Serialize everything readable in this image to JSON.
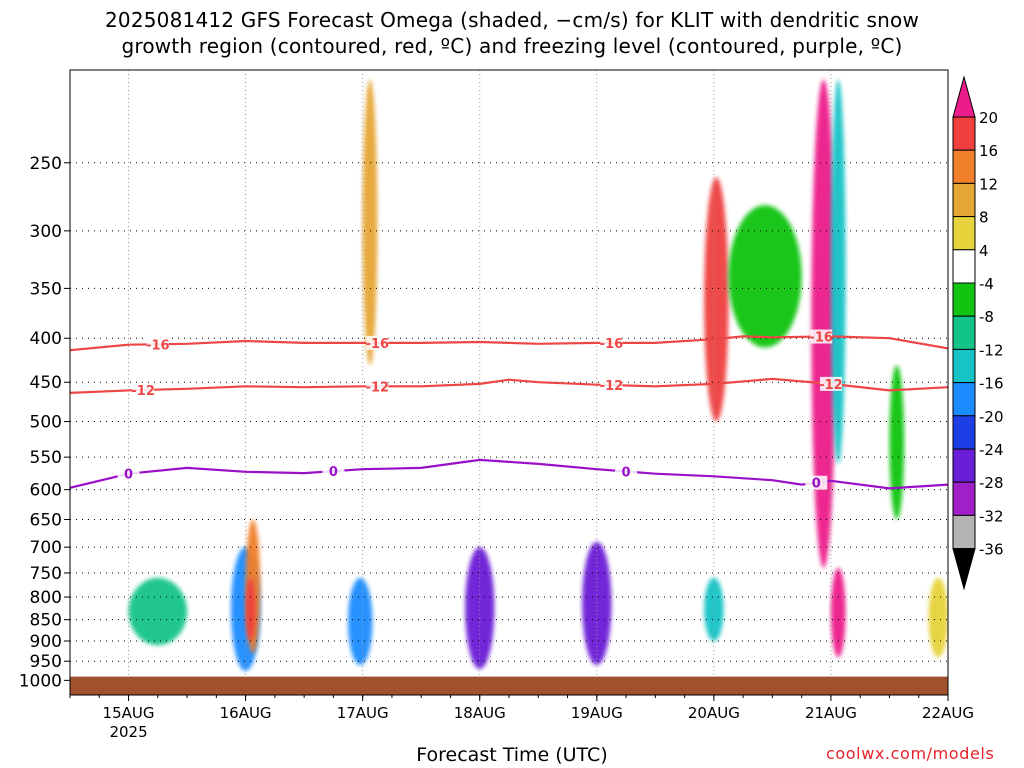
{
  "title_line1": "2025081412 GFS Forecast Omega (shaded, −cm/s) for KLIT with dendritic snow",
  "title_line2": "growth region (contoured, red, ºC) and freezing level (contoured, purple, ºC)",
  "xlabel": "Forecast Time (UTC)",
  "credit": "coolwx.com/models",
  "chart_data": {
    "type": "heatmap",
    "title": "2025081412 GFS Forecast Omega (shaded, −cm/s) for KLIT with dendritic snow growth region (contoured, red, ºC) and freezing level (contoured, purple, ºC)",
    "xlabel": "Forecast Time (UTC)",
    "ylabel": "",
    "x_range": [
      "2025-08-14 12:00",
      "2025-08-22 00:00"
    ],
    "x_ticks": [
      {
        "date": "2025-08-15",
        "label": "15AUG",
        "sublabel": "2025"
      },
      {
        "date": "2025-08-16",
        "label": "16AUG"
      },
      {
        "date": "2025-08-17",
        "label": "17AUG"
      },
      {
        "date": "2025-08-18",
        "label": "18AUG"
      },
      {
        "date": "2025-08-19",
        "label": "19AUG"
      },
      {
        "date": "2025-08-20",
        "label": "20AUG"
      },
      {
        "date": "2025-08-21",
        "label": "21AUG"
      },
      {
        "date": "2025-08-22",
        "label": "22AUG"
      }
    ],
    "y_scale": "log",
    "y_inverted": true,
    "y_range": [
      1040,
      195
    ],
    "y_ticks": [
      250,
      300,
      350,
      400,
      450,
      500,
      550,
      600,
      650,
      700,
      750,
      800,
      850,
      900,
      950,
      1000
    ],
    "grid": "dotted",
    "ground_band": {
      "from": 990,
      "to": 1040,
      "color": "#a0522d"
    },
    "colorbar": {
      "levels": [
        20,
        16,
        12,
        8,
        4,
        -4,
        -8,
        -12,
        -16,
        -20,
        -24,
        -28,
        -32,
        -36
      ],
      "bands": [
        {
          "from": 20,
          "to": null,
          "color": "#ec1d8a"
        },
        {
          "from": 16,
          "to": 20,
          "color": "#ef3f3f"
        },
        {
          "from": 12,
          "to": 16,
          "color": "#f07f2a"
        },
        {
          "from": 8,
          "to": 12,
          "color": "#e5a635"
        },
        {
          "from": 4,
          "to": 8,
          "color": "#e6d23a"
        },
        {
          "from": -4,
          "to": 4,
          "color": "#ffffff"
        },
        {
          "from": -8,
          "to": -4,
          "color": "#11c411"
        },
        {
          "from": -12,
          "to": -8,
          "color": "#13c48a"
        },
        {
          "from": -16,
          "to": -12,
          "color": "#16c3c6"
        },
        {
          "from": -20,
          "to": -16,
          "color": "#1a8cff"
        },
        {
          "from": -24,
          "to": -20,
          "color": "#1f3fe6"
        },
        {
          "from": -28,
          "to": -24,
          "color": "#6a1fd6"
        },
        {
          "from": -32,
          "to": -28,
          "color": "#a11fc8"
        },
        {
          "from": -36,
          "to": -32,
          "color": "#b4b4b4"
        },
        {
          "from": null,
          "to": -36,
          "color": "#000000"
        }
      ]
    },
    "contours": [
      {
        "label": "-16",
        "color": "#ee4646",
        "points": [
          [
            "08-14 12",
            413
          ],
          [
            "08-15 00",
            407
          ],
          [
            "08-15 12",
            406
          ],
          [
            "08-16 00",
            403
          ],
          [
            "08-16 12",
            405
          ],
          [
            "08-17 00",
            405
          ],
          [
            "08-17 12",
            405
          ],
          [
            "08-18 00",
            404
          ],
          [
            "08-18 12",
            406
          ],
          [
            "08-19 00",
            405
          ],
          [
            "08-19 12",
            405
          ],
          [
            "08-20 00",
            401
          ],
          [
            "08-20 06",
            398
          ],
          [
            "08-20 12",
            399
          ],
          [
            "08-21 00",
            398
          ],
          [
            "08-21 12",
            400
          ],
          [
            "08-22 00",
            411
          ]
        ],
        "label_at": [
          "08-15 06",
          "08-17 03",
          "08-19 03",
          "08-20 22"
        ]
      },
      {
        "label": "-12",
        "color": "#ee4646",
        "points": [
          [
            "08-14 12",
            463
          ],
          [
            "08-15 00",
            460
          ],
          [
            "08-15 12",
            458
          ],
          [
            "08-16 00",
            455
          ],
          [
            "08-16 12",
            456
          ],
          [
            "08-17 00",
            455
          ],
          [
            "08-17 12",
            455
          ],
          [
            "08-18 00",
            452
          ],
          [
            "08-18 06",
            447
          ],
          [
            "08-18 12",
            450
          ],
          [
            "08-19 00",
            453
          ],
          [
            "08-19 12",
            455
          ],
          [
            "08-20 00",
            452
          ],
          [
            "08-20 12",
            446
          ],
          [
            "08-21 00",
            452
          ],
          [
            "08-21 12",
            460
          ],
          [
            "08-22 00",
            456
          ]
        ],
        "label_at": [
          "08-15 03",
          "08-17 03",
          "08-19 03",
          "08-21 00"
        ]
      },
      {
        "label": "0",
        "color": "#9a10c8",
        "points": [
          [
            "08-14 12",
            597
          ],
          [
            "08-15 00",
            575
          ],
          [
            "08-15 12",
            566
          ],
          [
            "08-16 00",
            572
          ],
          [
            "08-16 12",
            574
          ],
          [
            "08-17 00",
            568
          ],
          [
            "08-17 12",
            566
          ],
          [
            "08-18 00",
            554
          ],
          [
            "08-18 12",
            560
          ],
          [
            "08-19 00",
            568
          ],
          [
            "08-19 12",
            575
          ],
          [
            "08-20 00",
            579
          ],
          [
            "08-20 12",
            585
          ],
          [
            "08-20 18",
            592
          ],
          [
            "08-21 00",
            586
          ],
          [
            "08-21 12",
            598
          ],
          [
            "08-22 00",
            592
          ]
        ],
        "label_at": [
          "08-15 00",
          "08-16 18",
          "08-19 06",
          "08-20 21"
        ]
      }
    ],
    "shaded_regions": [
      {
        "x": [
          "08-15 00",
          "08-15 12"
        ],
        "p": [
          910,
          760
        ],
        "value": -10
      },
      {
        "x": [
          "08-15 21",
          "08-16 03"
        ],
        "p": [
          975,
          700
        ],
        "value": -20
      },
      {
        "x": [
          "08-16 00",
          "08-16 03"
        ],
        "p": [
          930,
          650
        ],
        "value": 14
      },
      {
        "x": [
          "08-16 00",
          "08-16 02"
        ],
        "p": [
          900,
          760
        ],
        "value": 18
      },
      {
        "x": [
          "08-16 21",
          "08-17 02"
        ],
        "p": [
          960,
          760
        ],
        "value": -18
      },
      {
        "x": [
          "08-17 00",
          "08-17 03"
        ],
        "p": [
          430,
          200
        ],
        "value": 10
      },
      {
        "x": [
          "08-17 21",
          "08-18 03"
        ],
        "p": [
          970,
          700
        ],
        "value": -28
      },
      {
        "x": [
          "08-18 21",
          "08-19 03"
        ],
        "p": [
          960,
          690
        ],
        "value": -28
      },
      {
        "x": [
          "08-19 22",
          "08-20 03"
        ],
        "p": [
          500,
          260
        ],
        "value": 16
      },
      {
        "x": [
          "08-19 22",
          "08-20 02"
        ],
        "p": [
          900,
          760
        ],
        "value": -14
      },
      {
        "x": [
          "08-20 03",
          "08-20 18"
        ],
        "p": [
          410,
          280
        ],
        "value": -6
      },
      {
        "x": [
          "08-20 20",
          "08-21 01"
        ],
        "p": [
          740,
          200
        ],
        "value": 20
      },
      {
        "x": [
          "08-21 00",
          "08-21 03"
        ],
        "p": [
          560,
          200
        ],
        "value": -14
      },
      {
        "x": [
          "08-21 00",
          "08-21 03"
        ],
        "p": [
          940,
          740
        ],
        "value": 20
      },
      {
        "x": [
          "08-21 12",
          "08-21 15"
        ],
        "p": [
          650,
          430
        ],
        "value": -6
      },
      {
        "x": [
          "08-21 20",
          "08-22 00"
        ],
        "p": [
          940,
          760
        ],
        "value": 6
      }
    ]
  }
}
